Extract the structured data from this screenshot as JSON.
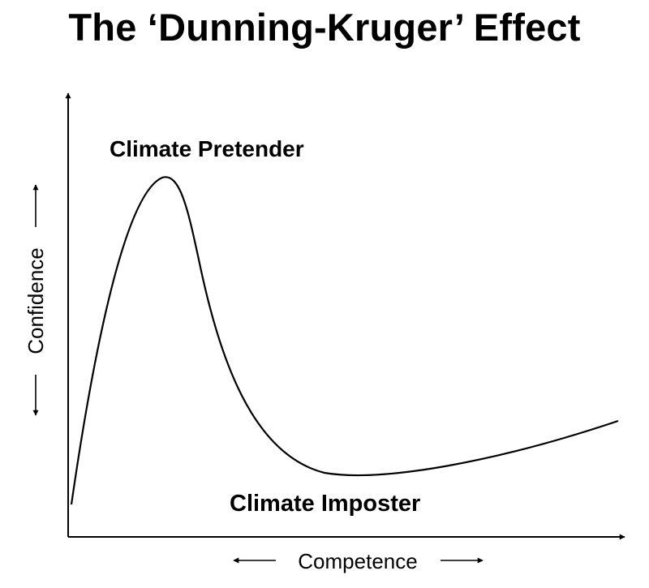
{
  "title": "The ‘Dunning-Kruger’ Effect",
  "labels": {
    "peak": "Climate Pretender",
    "valley": "Climate Imposter"
  },
  "axes": {
    "x_label": "Competence",
    "y_label": "Confidence"
  },
  "colors": {
    "curve": "#000000",
    "background": "#ffffff"
  }
}
